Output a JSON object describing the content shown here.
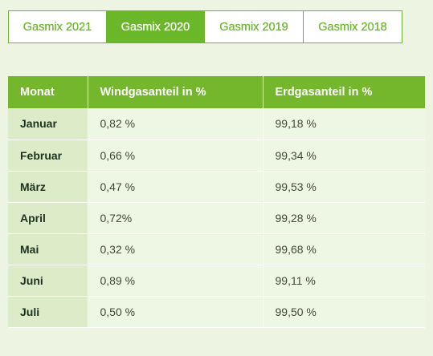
{
  "tabs": [
    {
      "label": "Gasmix 2021",
      "active": false
    },
    {
      "label": "Gasmix 2020",
      "active": true
    },
    {
      "label": "Gasmix 2019",
      "active": false
    },
    {
      "label": "Gasmix 2018",
      "active": false
    }
  ],
  "table": {
    "headers": [
      "Monat",
      "Windgasanteil in %",
      "Erdgasanteil in %"
    ],
    "rows": [
      [
        "Januar",
        "0,82 %",
        "99,18 %"
      ],
      [
        "Februar",
        "0,66 %",
        "99,34 %"
      ],
      [
        "März",
        "0,47 %",
        "99,53 %"
      ],
      [
        "April",
        "0,72%",
        "99,28 %"
      ],
      [
        "Mai",
        "0,32 %",
        "99,68 %"
      ],
      [
        "Juni",
        "0,89 %",
        "99,11 %"
      ],
      [
        "Juli",
        "0,50 %",
        "99,50 %"
      ]
    ]
  },
  "colors": {
    "accent": "#74b72c",
    "background": "#edf4e2",
    "month_cell": "#dcebc8"
  }
}
